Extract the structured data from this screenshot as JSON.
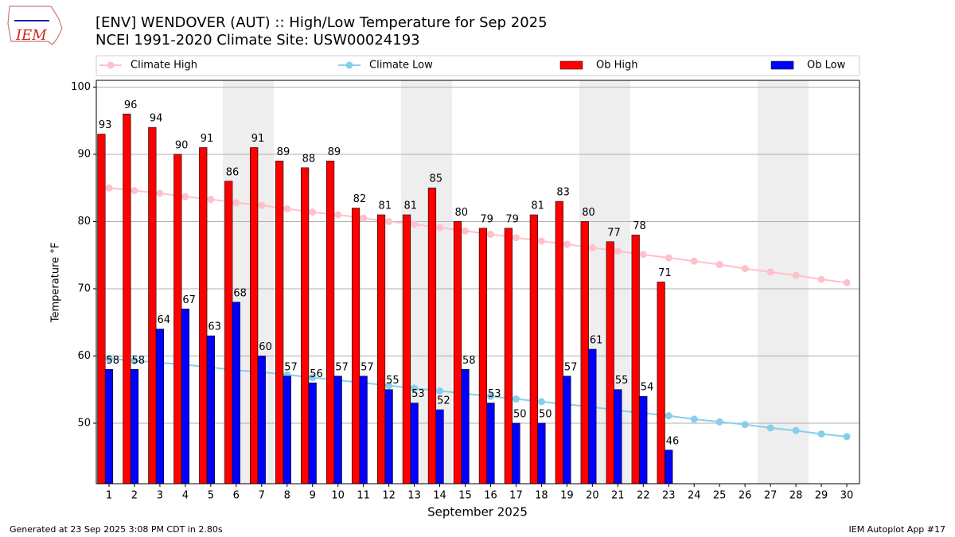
{
  "logo": "IEM",
  "footer_left": "Generated at 23 Sep 2025 3:08 PM CDT in 2.80s",
  "footer_right": "IEM Autoplot App #17",
  "chart_data": {
    "type": "bar",
    "title": "[ENV] WENDOVER (AUT) :: High/Low Temperature for Sep 2025",
    "subtitle": "NCEI 1991-2020 Climate Site: USW00024193",
    "x_label": "September 2025",
    "y_label": "Temperature °F",
    "x": [
      1,
      2,
      3,
      4,
      5,
      6,
      7,
      8,
      9,
      10,
      11,
      12,
      13,
      14,
      15,
      16,
      17,
      18,
      19,
      20,
      21,
      22,
      23,
      24,
      25,
      26,
      27,
      28,
      29,
      30
    ],
    "xlim": [
      0.5,
      30.5
    ],
    "xticks": [
      1,
      2,
      3,
      4,
      5,
      6,
      7,
      8,
      9,
      10,
      11,
      12,
      13,
      14,
      15,
      16,
      17,
      18,
      19,
      20,
      21,
      22,
      23,
      24,
      25,
      26,
      27,
      28,
      29,
      30
    ],
    "ylim": [
      41,
      101
    ],
    "yticks": [
      50,
      60,
      70,
      80,
      90,
      100
    ],
    "grid": true,
    "series": [
      {
        "name": "Climate High",
        "type": "line",
        "color": "#ffc0cb",
        "values": [
          85.0,
          84.6,
          84.2,
          83.7,
          83.3,
          82.8,
          82.4,
          81.9,
          81.4,
          81.0,
          80.5,
          80.0,
          79.6,
          79.1,
          78.6,
          78.1,
          77.6,
          77.1,
          76.6,
          76.1,
          75.6,
          75.1,
          74.6,
          74.1,
          73.6,
          73.0,
          72.5,
          72.0,
          71.4,
          70.9
        ]
      },
      {
        "name": "Climate Low",
        "type": "line",
        "color": "#87ceeb",
        "values": [
          59.6,
          59.3,
          59.0,
          58.7,
          58.3,
          57.9,
          57.6,
          57.2,
          56.8,
          56.4,
          56.0,
          55.6,
          55.2,
          54.8,
          54.4,
          54.0,
          53.6,
          53.2,
          52.8,
          52.4,
          51.9,
          51.5,
          51.1,
          50.6,
          50.2,
          49.8,
          49.3,
          48.9,
          48.4,
          48.0
        ]
      },
      {
        "name": "Ob High",
        "type": "bar",
        "color": "#ff0000",
        "values": [
          93,
          96,
          94,
          90,
          91,
          86,
          91,
          89,
          88,
          89,
          82,
          81,
          81,
          85,
          80,
          79,
          79,
          81,
          83,
          80,
          77,
          78,
          71,
          null,
          null,
          null,
          null,
          null,
          null,
          null
        ]
      },
      {
        "name": "Ob Low",
        "type": "bar",
        "color": "#0000ff",
        "values": [
          58,
          58,
          64,
          67,
          63,
          68,
          60,
          57,
          56,
          57,
          57,
          55,
          53,
          52,
          58,
          53,
          50,
          50,
          57,
          61,
          55,
          54,
          46,
          null,
          null,
          null,
          null,
          null,
          null,
          null
        ]
      }
    ]
  }
}
